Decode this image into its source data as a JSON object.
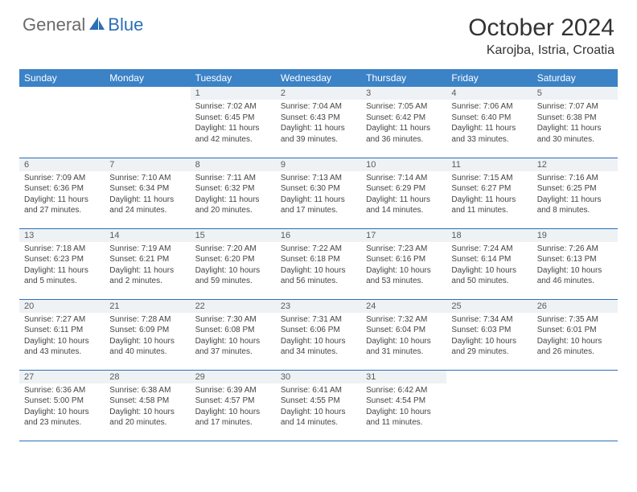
{
  "logo": {
    "text_left": "General",
    "text_right": "Blue"
  },
  "title": "October 2024",
  "location": "Karojba, Istria, Croatia",
  "colors": {
    "header_bg": "#3b82c7",
    "header_text": "#ffffff",
    "daynum_bg": "#eef2f5",
    "border": "#2b6fb5",
    "logo_gray": "#6b6b6b",
    "logo_blue": "#2b6fb5"
  },
  "day_headers": [
    "Sunday",
    "Monday",
    "Tuesday",
    "Wednesday",
    "Thursday",
    "Friday",
    "Saturday"
  ],
  "weeks": [
    [
      {
        "num": "",
        "sunrise": "",
        "sunset": "",
        "daylight": ""
      },
      {
        "num": "",
        "sunrise": "",
        "sunset": "",
        "daylight": ""
      },
      {
        "num": "1",
        "sunrise": "Sunrise: 7:02 AM",
        "sunset": "Sunset: 6:45 PM",
        "daylight": "Daylight: 11 hours and 42 minutes."
      },
      {
        "num": "2",
        "sunrise": "Sunrise: 7:04 AM",
        "sunset": "Sunset: 6:43 PM",
        "daylight": "Daylight: 11 hours and 39 minutes."
      },
      {
        "num": "3",
        "sunrise": "Sunrise: 7:05 AM",
        "sunset": "Sunset: 6:42 PM",
        "daylight": "Daylight: 11 hours and 36 minutes."
      },
      {
        "num": "4",
        "sunrise": "Sunrise: 7:06 AM",
        "sunset": "Sunset: 6:40 PM",
        "daylight": "Daylight: 11 hours and 33 minutes."
      },
      {
        "num": "5",
        "sunrise": "Sunrise: 7:07 AM",
        "sunset": "Sunset: 6:38 PM",
        "daylight": "Daylight: 11 hours and 30 minutes."
      }
    ],
    [
      {
        "num": "6",
        "sunrise": "Sunrise: 7:09 AM",
        "sunset": "Sunset: 6:36 PM",
        "daylight": "Daylight: 11 hours and 27 minutes."
      },
      {
        "num": "7",
        "sunrise": "Sunrise: 7:10 AM",
        "sunset": "Sunset: 6:34 PM",
        "daylight": "Daylight: 11 hours and 24 minutes."
      },
      {
        "num": "8",
        "sunrise": "Sunrise: 7:11 AM",
        "sunset": "Sunset: 6:32 PM",
        "daylight": "Daylight: 11 hours and 20 minutes."
      },
      {
        "num": "9",
        "sunrise": "Sunrise: 7:13 AM",
        "sunset": "Sunset: 6:30 PM",
        "daylight": "Daylight: 11 hours and 17 minutes."
      },
      {
        "num": "10",
        "sunrise": "Sunrise: 7:14 AM",
        "sunset": "Sunset: 6:29 PM",
        "daylight": "Daylight: 11 hours and 14 minutes."
      },
      {
        "num": "11",
        "sunrise": "Sunrise: 7:15 AM",
        "sunset": "Sunset: 6:27 PM",
        "daylight": "Daylight: 11 hours and 11 minutes."
      },
      {
        "num": "12",
        "sunrise": "Sunrise: 7:16 AM",
        "sunset": "Sunset: 6:25 PM",
        "daylight": "Daylight: 11 hours and 8 minutes."
      }
    ],
    [
      {
        "num": "13",
        "sunrise": "Sunrise: 7:18 AM",
        "sunset": "Sunset: 6:23 PM",
        "daylight": "Daylight: 11 hours and 5 minutes."
      },
      {
        "num": "14",
        "sunrise": "Sunrise: 7:19 AM",
        "sunset": "Sunset: 6:21 PM",
        "daylight": "Daylight: 11 hours and 2 minutes."
      },
      {
        "num": "15",
        "sunrise": "Sunrise: 7:20 AM",
        "sunset": "Sunset: 6:20 PM",
        "daylight": "Daylight: 10 hours and 59 minutes."
      },
      {
        "num": "16",
        "sunrise": "Sunrise: 7:22 AM",
        "sunset": "Sunset: 6:18 PM",
        "daylight": "Daylight: 10 hours and 56 minutes."
      },
      {
        "num": "17",
        "sunrise": "Sunrise: 7:23 AM",
        "sunset": "Sunset: 6:16 PM",
        "daylight": "Daylight: 10 hours and 53 minutes."
      },
      {
        "num": "18",
        "sunrise": "Sunrise: 7:24 AM",
        "sunset": "Sunset: 6:14 PM",
        "daylight": "Daylight: 10 hours and 50 minutes."
      },
      {
        "num": "19",
        "sunrise": "Sunrise: 7:26 AM",
        "sunset": "Sunset: 6:13 PM",
        "daylight": "Daylight: 10 hours and 46 minutes."
      }
    ],
    [
      {
        "num": "20",
        "sunrise": "Sunrise: 7:27 AM",
        "sunset": "Sunset: 6:11 PM",
        "daylight": "Daylight: 10 hours and 43 minutes."
      },
      {
        "num": "21",
        "sunrise": "Sunrise: 7:28 AM",
        "sunset": "Sunset: 6:09 PM",
        "daylight": "Daylight: 10 hours and 40 minutes."
      },
      {
        "num": "22",
        "sunrise": "Sunrise: 7:30 AM",
        "sunset": "Sunset: 6:08 PM",
        "daylight": "Daylight: 10 hours and 37 minutes."
      },
      {
        "num": "23",
        "sunrise": "Sunrise: 7:31 AM",
        "sunset": "Sunset: 6:06 PM",
        "daylight": "Daylight: 10 hours and 34 minutes."
      },
      {
        "num": "24",
        "sunrise": "Sunrise: 7:32 AM",
        "sunset": "Sunset: 6:04 PM",
        "daylight": "Daylight: 10 hours and 31 minutes."
      },
      {
        "num": "25",
        "sunrise": "Sunrise: 7:34 AM",
        "sunset": "Sunset: 6:03 PM",
        "daylight": "Daylight: 10 hours and 29 minutes."
      },
      {
        "num": "26",
        "sunrise": "Sunrise: 7:35 AM",
        "sunset": "Sunset: 6:01 PM",
        "daylight": "Daylight: 10 hours and 26 minutes."
      }
    ],
    [
      {
        "num": "27",
        "sunrise": "Sunrise: 6:36 AM",
        "sunset": "Sunset: 5:00 PM",
        "daylight": "Daylight: 10 hours and 23 minutes."
      },
      {
        "num": "28",
        "sunrise": "Sunrise: 6:38 AM",
        "sunset": "Sunset: 4:58 PM",
        "daylight": "Daylight: 10 hours and 20 minutes."
      },
      {
        "num": "29",
        "sunrise": "Sunrise: 6:39 AM",
        "sunset": "Sunset: 4:57 PM",
        "daylight": "Daylight: 10 hours and 17 minutes."
      },
      {
        "num": "30",
        "sunrise": "Sunrise: 6:41 AM",
        "sunset": "Sunset: 4:55 PM",
        "daylight": "Daylight: 10 hours and 14 minutes."
      },
      {
        "num": "31",
        "sunrise": "Sunrise: 6:42 AM",
        "sunset": "Sunset: 4:54 PM",
        "daylight": "Daylight: 10 hours and 11 minutes."
      },
      {
        "num": "",
        "sunrise": "",
        "sunset": "",
        "daylight": ""
      },
      {
        "num": "",
        "sunrise": "",
        "sunset": "",
        "daylight": ""
      }
    ]
  ]
}
